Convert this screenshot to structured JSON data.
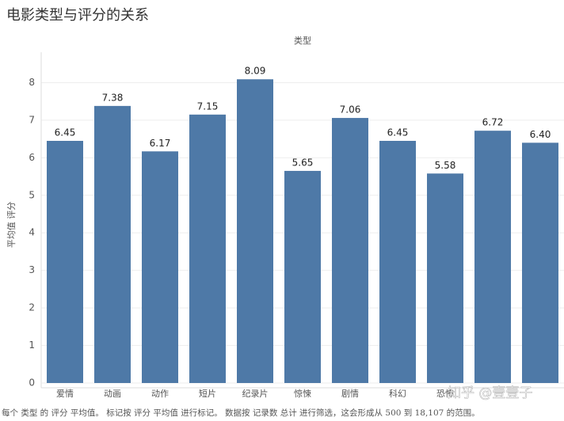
{
  "chart_data": {
    "type": "bar",
    "title": "电影类型与评分的关系",
    "column_header": "类型",
    "y_label": "平均值 评分",
    "categories": [
      "爱情",
      "动画",
      "动作",
      "短片",
      "纪录片",
      "惊悚",
      "剧情",
      "科幻",
      "恐怖",
      null,
      null
    ],
    "values": [
      6.45,
      7.38,
      6.17,
      7.15,
      8.09,
      5.65,
      7.06,
      6.45,
      5.58,
      6.72,
      6.4
    ],
    "value_labels": [
      "6.45",
      "7.38",
      "6.17",
      "7.15",
      "8.09",
      "5.65",
      "7.06",
      "6.45",
      "5.58",
      "6.72",
      "6.40"
    ],
    "color": "#4e79a7",
    "ylim": [
      0,
      8.6
    ],
    "yticks": [
      0,
      1,
      2,
      3,
      4,
      5,
      6,
      7,
      8
    ],
    "grid": true,
    "caption": "每个 类型 的 评分 平均值。 标记按 评分 平均值 进行标记。 数据按 记录数 总计 进行筛选，这会形成从 500 到 18,107 的范围。",
    "watermark": "知乎 @壹壹子"
  }
}
